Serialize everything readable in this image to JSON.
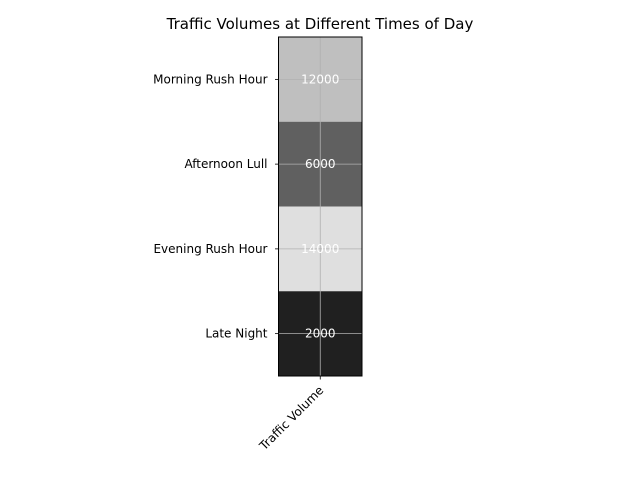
{
  "chart_data": {
    "type": "heatmap",
    "title": "Traffic Volumes at Different Times of Day",
    "rows": [
      "Morning Rush Hour",
      "Afternoon Lull",
      "Evening Rush Hour",
      "Late Night"
    ],
    "columns": [
      "Traffic Volume"
    ],
    "values": [
      [
        12000
      ],
      [
        6000
      ],
      [
        14000
      ],
      [
        2000
      ]
    ],
    "colormap": "gray",
    "color_range": [
      0,
      16000
    ],
    "grid": true,
    "colors": {
      "grid": "#b0b0b0",
      "frame": "#000000",
      "cell_text": "#ffffff"
    }
  }
}
